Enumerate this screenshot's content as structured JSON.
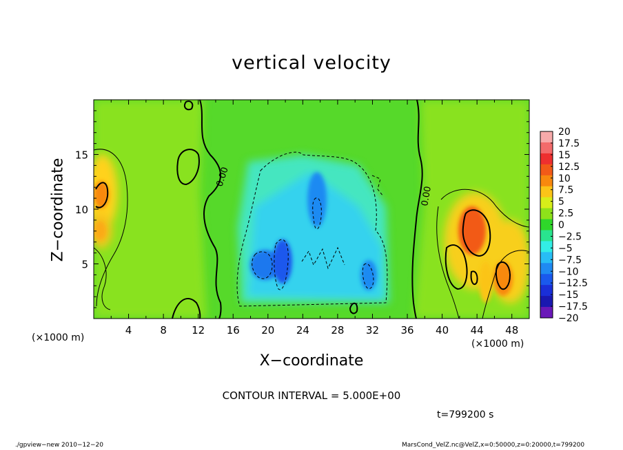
{
  "chart_data": {
    "type": "heatmap",
    "title": "vertical velocity",
    "xlabel": "X−coordinate",
    "ylabel": "Z−coordinate",
    "x_unit": "(×1000 m)",
    "xlim": [
      0,
      50
    ],
    "ylim": [
      0,
      20
    ],
    "x_ticks": [
      4,
      8,
      12,
      16,
      20,
      24,
      28,
      32,
      36,
      40,
      44,
      48
    ],
    "x_tick_labels": [
      "4",
      "8",
      "12",
      "16",
      "20",
      "24",
      "28",
      "32",
      "36",
      "40",
      "44",
      "48"
    ],
    "y_ticks": [
      5,
      10,
      15
    ],
    "y_tick_labels": [
      "5",
      "10",
      "15"
    ],
    "colorbar": {
      "levels": [
        20,
        17.5,
        15,
        12.5,
        10,
        7.5,
        5,
        2.5,
        0,
        -2.5,
        -5,
        -7.5,
        -10,
        -12.5,
        -15,
        -17.5,
        -20
      ],
      "labels": [
        "20",
        "17.5",
        "15",
        "12.5",
        "10",
        "7.5",
        "5",
        "2.5",
        "0",
        "−2.5",
        "−5",
        "−7.5",
        "−10",
        "−12.5",
        "−15",
        "−17.5",
        "−20"
      ],
      "colors": [
        "#f7aaaa",
        "#f36b6b",
        "#ee2f2f",
        "#f25a18",
        "#f8890e",
        "#fbc418",
        "#d7ee1a",
        "#8ee21a",
        "#2fd72a",
        "#29e48f",
        "#33ede6",
        "#28bdf5",
        "#1f8af2",
        "#1a59ed",
        "#1a2fd8",
        "#1a18b0",
        "#6a18b8"
      ]
    },
    "features": [
      {
        "kind": "updraft",
        "x": 1,
        "z": 11.5,
        "w": 10
      },
      {
        "kind": "updraft",
        "x": 1,
        "z": 8,
        "w": 6
      },
      {
        "kind": "downdraft",
        "x": 19,
        "z": 5,
        "w": -10
      },
      {
        "kind": "downdraft",
        "x": 21.5,
        "z": 5.5,
        "w": -11
      },
      {
        "kind": "downdraft",
        "x": 25.5,
        "z": 10,
        "w": -8
      },
      {
        "kind": "downdraft",
        "x": 31,
        "z": 4,
        "w": -9
      },
      {
        "kind": "updraft",
        "x": 43,
        "z": 8,
        "w": 12
      },
      {
        "kind": "updraft",
        "x": 47,
        "z": 4.5,
        "w": 10
      }
    ],
    "contour_labels": [
      "0.00",
      "0.00"
    ]
  },
  "labels": {
    "contour_interval": "CONTOUR INTERVAL = 5.000E+00",
    "time": "t=799200 s",
    "footer_left": "./gpview−new  2010−12−20",
    "footer_right": "MarsCond_VelZ.nc@VelZ,x=0:50000,z=0:20000,t=799200"
  }
}
